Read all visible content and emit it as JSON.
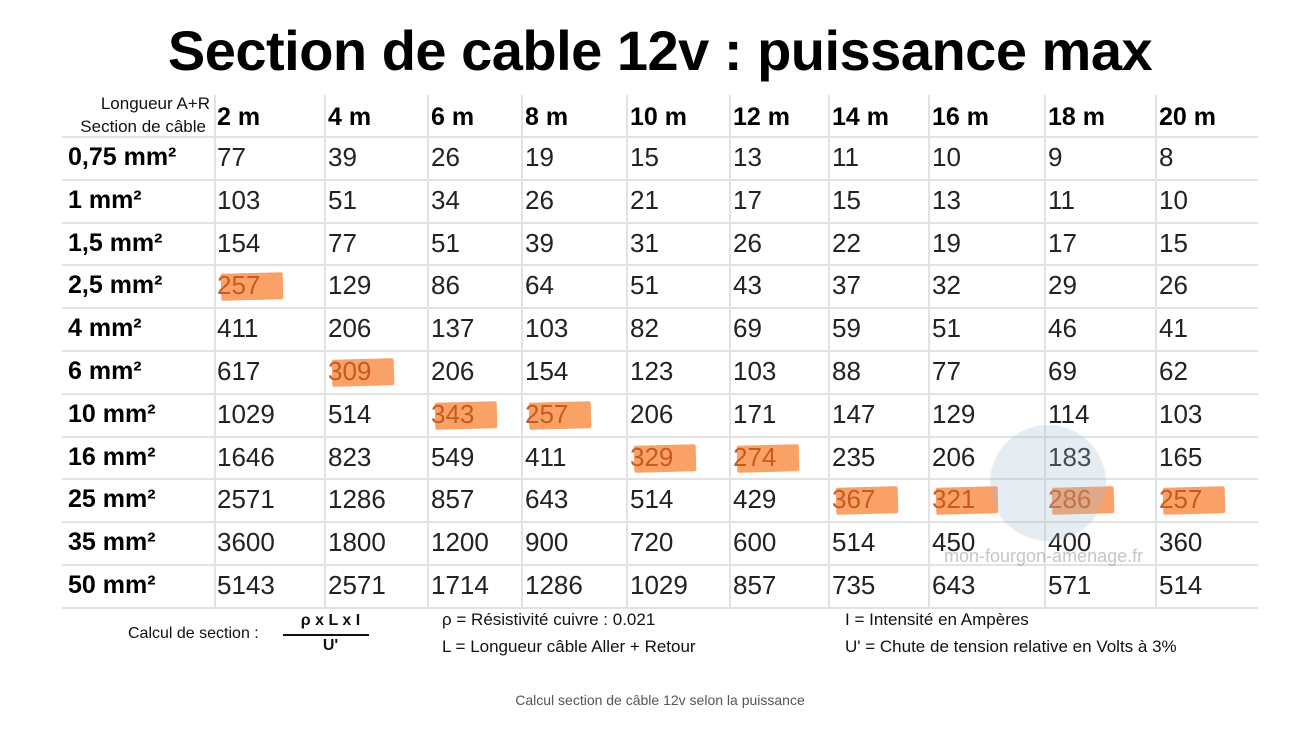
{
  "title": "Section de cable 12v : puissance max",
  "corner_label_top": "Longueur A+R",
  "corner_label_bottom": "Section de câble",
  "chart_data": {
    "type": "table",
    "title": "Section de cable 12v : puissance max",
    "columns": [
      "2 m",
      "4 m",
      "6 m",
      "8 m",
      "10 m",
      "12 m",
      "14 m",
      "16 m",
      "18 m",
      "20 m"
    ],
    "rows": [
      {
        "label": "0,75 mm²",
        "values": [
          "77",
          "39",
          "26",
          "19",
          "15",
          "13",
          "11",
          "10",
          "9",
          "8"
        ]
      },
      {
        "label": "1 mm²",
        "values": [
          "103",
          "51",
          "34",
          "26",
          "21",
          "17",
          "15",
          "13",
          "11",
          "10"
        ]
      },
      {
        "label": "1,5 mm²",
        "values": [
          "154",
          "77",
          "51",
          "39",
          "31",
          "26",
          "22",
          "19",
          "17",
          "15"
        ]
      },
      {
        "label": "2,5 mm²",
        "values": [
          "257",
          "129",
          "86",
          "64",
          "51",
          "43",
          "37",
          "32",
          "29",
          "26"
        ]
      },
      {
        "label": "4 mm²",
        "values": [
          "411",
          "206",
          "137",
          "103",
          "82",
          "69",
          "59",
          "51",
          "46",
          "41"
        ]
      },
      {
        "label": "6 mm²",
        "values": [
          "617",
          "309",
          "206",
          "154",
          "123",
          "103",
          "88",
          "77",
          "69",
          "62"
        ]
      },
      {
        "label": "10 mm²",
        "values": [
          "1029",
          "514",
          "343",
          "257",
          "206",
          "171",
          "147",
          "129",
          "114",
          "103"
        ]
      },
      {
        "label": "16 mm²",
        "values": [
          "1646",
          "823",
          "549",
          "411",
          "329",
          "274",
          "235",
          "206",
          "183",
          "165"
        ]
      },
      {
        "label": "25 mm²",
        "values": [
          "2571",
          "1286",
          "857",
          "643",
          "514",
          "429",
          "367",
          "321",
          "286",
          "257"
        ]
      },
      {
        "label": "35 mm²",
        "values": [
          "3600",
          "1800",
          "1200",
          "900",
          "720",
          "600",
          "514",
          "450",
          "400",
          "360"
        ]
      },
      {
        "label": "50 mm²",
        "values": [
          "5143",
          "2571",
          "1714",
          "1286",
          "1029",
          "857",
          "735",
          "643",
          "571",
          "514"
        ]
      }
    ],
    "highlighted_cells": [
      [
        3,
        0
      ],
      [
        5,
        1
      ],
      [
        6,
        2
      ],
      [
        6,
        3
      ],
      [
        7,
        4
      ],
      [
        7,
        5
      ],
      [
        8,
        6
      ],
      [
        8,
        7
      ],
      [
        8,
        8
      ],
      [
        8,
        9
      ]
    ],
    "highlight_color": "#f8873f",
    "grid_color": "#e2e2e2"
  },
  "formula": {
    "label": "Calcul de section :",
    "numerator": "ρ x L x I",
    "denominator": "U'"
  },
  "legend": {
    "rho": "ρ = Résistivité cuivre : 0.021",
    "length": "L = Longueur câble Aller + Retour",
    "intensity": "I = Intensité en Ampères",
    "voltage_drop": "U' = Chute de tension relative en Volts à 3%"
  },
  "watermark": "mon-fourgon-amenage.fr",
  "caption": "Calcul section de câble 12v selon la puissance"
}
